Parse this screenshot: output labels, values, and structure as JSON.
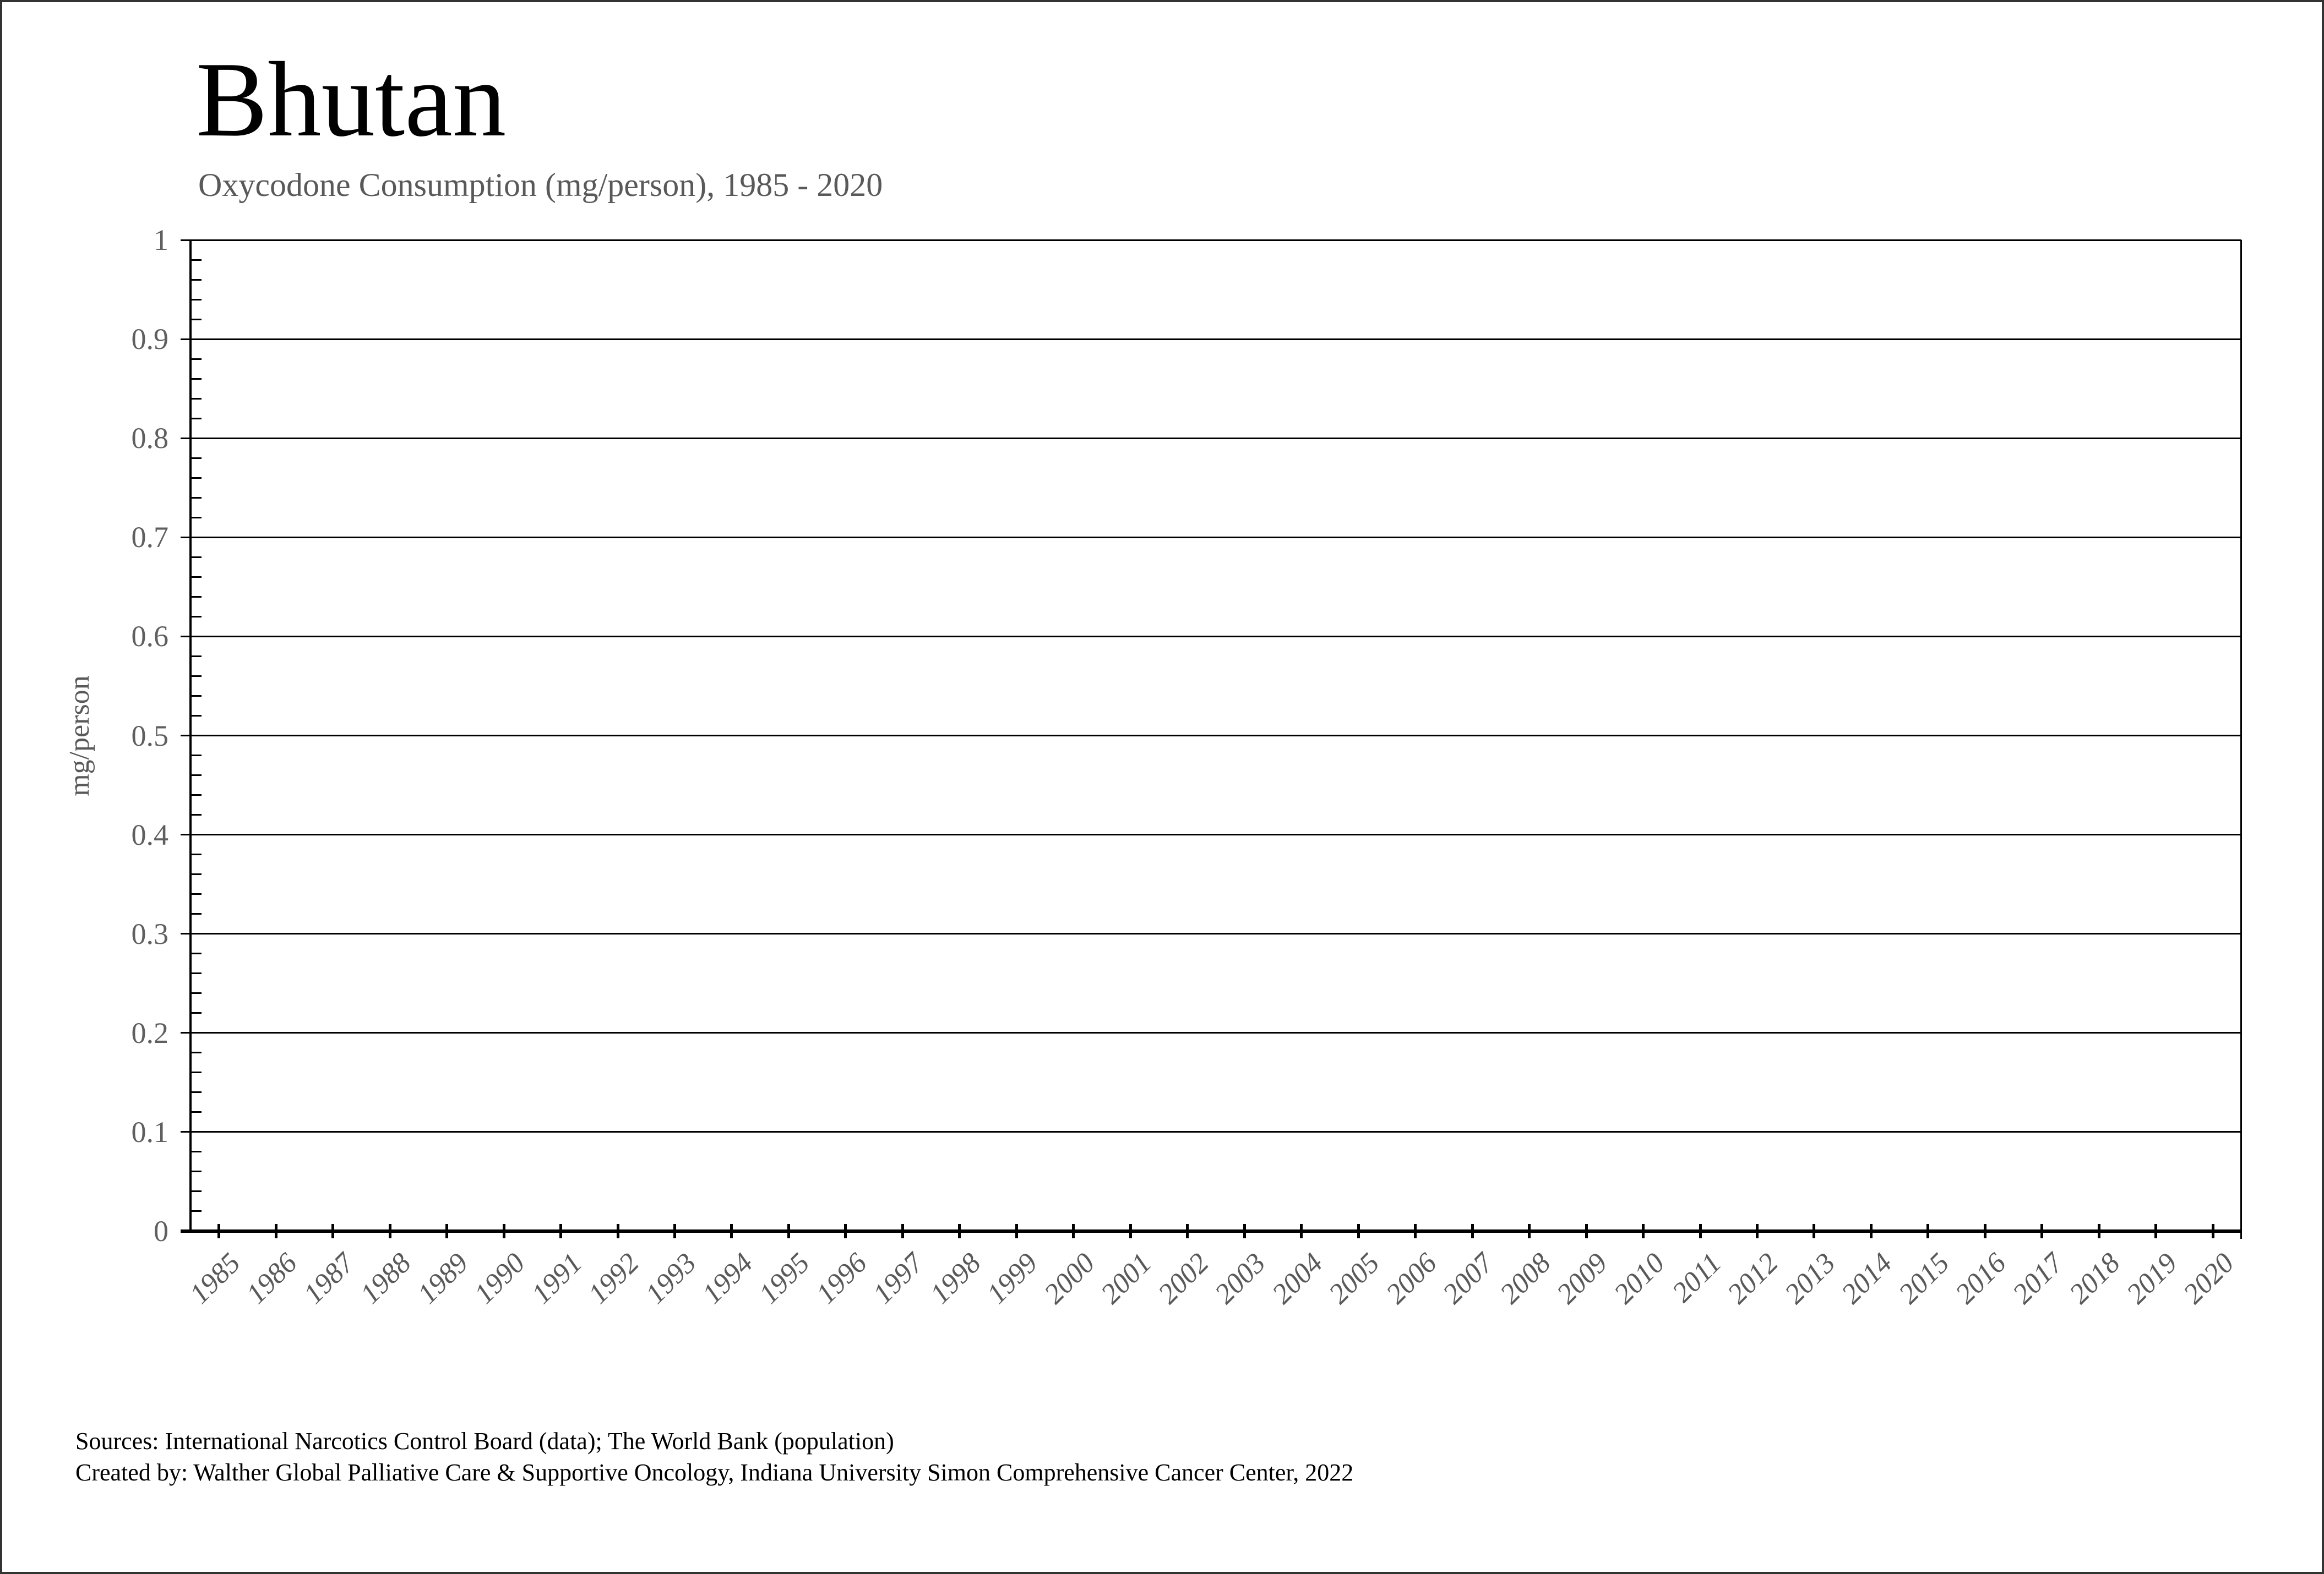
{
  "title": "Bhutan",
  "subtitle": "Oxycodone Consumption (mg/person), 1985 - 2020",
  "footer": {
    "sources_line": "Sources: International Narcotics Control Board (data); The World Bank (population)",
    "created_line": "Created by: Walther Global Palliative Care & Supportive Oncology, Indiana University Simon Comprehensive Cancer Center, 2022"
  },
  "chart_data": {
    "type": "line",
    "title": "Bhutan",
    "subtitle": "Oxycodone Consumption (mg/person), 1985 - 2020",
    "xlabel": "",
    "ylabel": "mg/person",
    "ylim": [
      0,
      1
    ],
    "y_tick_step": 0.1,
    "y_minor_tick_step": 0.02,
    "y_tick_labels": [
      "1",
      "0.9",
      "0.8",
      "0.7",
      "0.6",
      "0.5",
      "0.4",
      "0.3",
      "0.2",
      "0.1",
      "0"
    ],
    "categories": [
      "1985",
      "1986",
      "1987",
      "1988",
      "1989",
      "1990",
      "1991",
      "1992",
      "1993",
      "1994",
      "1995",
      "1996",
      "1997",
      "1998",
      "1999",
      "2000",
      "2001",
      "2002",
      "2003",
      "2004",
      "2005",
      "2006",
      "2007",
      "2008",
      "2009",
      "2010",
      "2011",
      "2012",
      "2013",
      "2014",
      "2015",
      "2016",
      "2017",
      "2018",
      "2019",
      "2020"
    ],
    "series": [],
    "note": "No data series is plotted; the chart area is empty",
    "grid": "horizontal-major",
    "legend": "none"
  }
}
